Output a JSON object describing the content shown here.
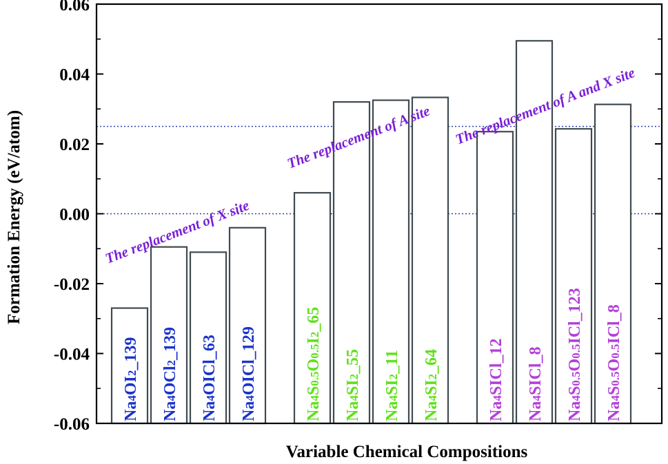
{
  "chart_data": {
    "type": "bar",
    "xlabel": "Variable Chemical Compositions",
    "ylabel": "Formation Energy (eV/atom)",
    "ylim": [
      -0.06,
      0.06
    ],
    "yticks": [
      "-0.06",
      "-0.04",
      "-0.02",
      "0.00",
      "0.02",
      "0.04",
      "0.06"
    ],
    "reference_lines": [
      0.0,
      0.025
    ],
    "colors": {
      "x_site": "#1a33cc",
      "a_site": "#5fe11a",
      "ax_site": "#b33fd9",
      "annotation": "#7a1fd6",
      "bar_stroke": "#3f4a50",
      "ref_line": "#2a3fb0"
    },
    "bars": [
      {
        "formula": [
          {
            "t": "Na"
          },
          {
            "t": "4",
            "s": 1
          },
          {
            "t": "OI"
          },
          {
            "t": "2",
            "s": 1
          },
          {
            "t": "_139"
          }
        ],
        "value": -0.027,
        "group": "x_site"
      },
      {
        "formula": [
          {
            "t": "Na"
          },
          {
            "t": "4",
            "s": 1
          },
          {
            "t": "OCl"
          },
          {
            "t": "2",
            "s": 1
          },
          {
            "t": "_139"
          }
        ],
        "value": -0.0095,
        "group": "x_site"
      },
      {
        "formula": [
          {
            "t": "Na"
          },
          {
            "t": "4",
            "s": 1
          },
          {
            "t": "OICl_63"
          }
        ],
        "value": -0.011,
        "group": "x_site"
      },
      {
        "formula": [
          {
            "t": "Na"
          },
          {
            "t": "4",
            "s": 1
          },
          {
            "t": "OICl_129"
          }
        ],
        "value": -0.004,
        "group": "x_site"
      },
      {
        "formula": [
          {
            "t": "Na"
          },
          {
            "t": "4",
            "s": 1
          },
          {
            "t": "S"
          },
          {
            "t": "0.5",
            "s": 1
          },
          {
            "t": "O"
          },
          {
            "t": "0.5",
            "s": 1
          },
          {
            "t": "I"
          },
          {
            "t": "2",
            "s": 1
          },
          {
            "t": "_65"
          }
        ],
        "value": 0.006,
        "group": "a_site"
      },
      {
        "formula": [
          {
            "t": "Na"
          },
          {
            "t": "4",
            "s": 1
          },
          {
            "t": "SI"
          },
          {
            "t": "2",
            "s": 1
          },
          {
            "t": "_55"
          }
        ],
        "value": 0.032,
        "group": "a_site"
      },
      {
        "formula": [
          {
            "t": "Na"
          },
          {
            "t": "4",
            "s": 1
          },
          {
            "t": "SI"
          },
          {
            "t": "2",
            "s": 1
          },
          {
            "t": "_11"
          }
        ],
        "value": 0.0325,
        "group": "a_site"
      },
      {
        "formula": [
          {
            "t": "Na"
          },
          {
            "t": "4",
            "s": 1
          },
          {
            "t": "SI"
          },
          {
            "t": "2",
            "s": 1
          },
          {
            "t": "_64"
          }
        ],
        "value": 0.0333,
        "group": "a_site"
      },
      {
        "formula": [
          {
            "t": "Na"
          },
          {
            "t": "4",
            "s": 1
          },
          {
            "t": "SICl_12"
          }
        ],
        "value": 0.0235,
        "group": "ax_site"
      },
      {
        "formula": [
          {
            "t": "Na"
          },
          {
            "t": "4",
            "s": 1
          },
          {
            "t": "SICl_8"
          }
        ],
        "value": 0.0495,
        "group": "ax_site"
      },
      {
        "formula": [
          {
            "t": "Na"
          },
          {
            "t": "4",
            "s": 1
          },
          {
            "t": "S"
          },
          {
            "t": "0.5",
            "s": 1
          },
          {
            "t": "O"
          },
          {
            "t": "0.5",
            "s": 1
          },
          {
            "t": "ICl_123"
          }
        ],
        "value": 0.0243,
        "group": "ax_site"
      },
      {
        "formula": [
          {
            "t": "Na"
          },
          {
            "t": "4",
            "s": 1
          },
          {
            "t": "S"
          },
          {
            "t": "0.5",
            "s": 1
          },
          {
            "t": "O"
          },
          {
            "t": "0.5",
            "s": 1
          },
          {
            "t": "ICl_8"
          }
        ],
        "value": 0.0313,
        "group": "ax_site"
      }
    ],
    "annotations": [
      {
        "text": "The replacement of X site",
        "group": "x_site"
      },
      {
        "text": "The replacement of A site",
        "group": "a_site"
      },
      {
        "text": "The replacement of A and X site",
        "group": "ax_site"
      }
    ]
  }
}
